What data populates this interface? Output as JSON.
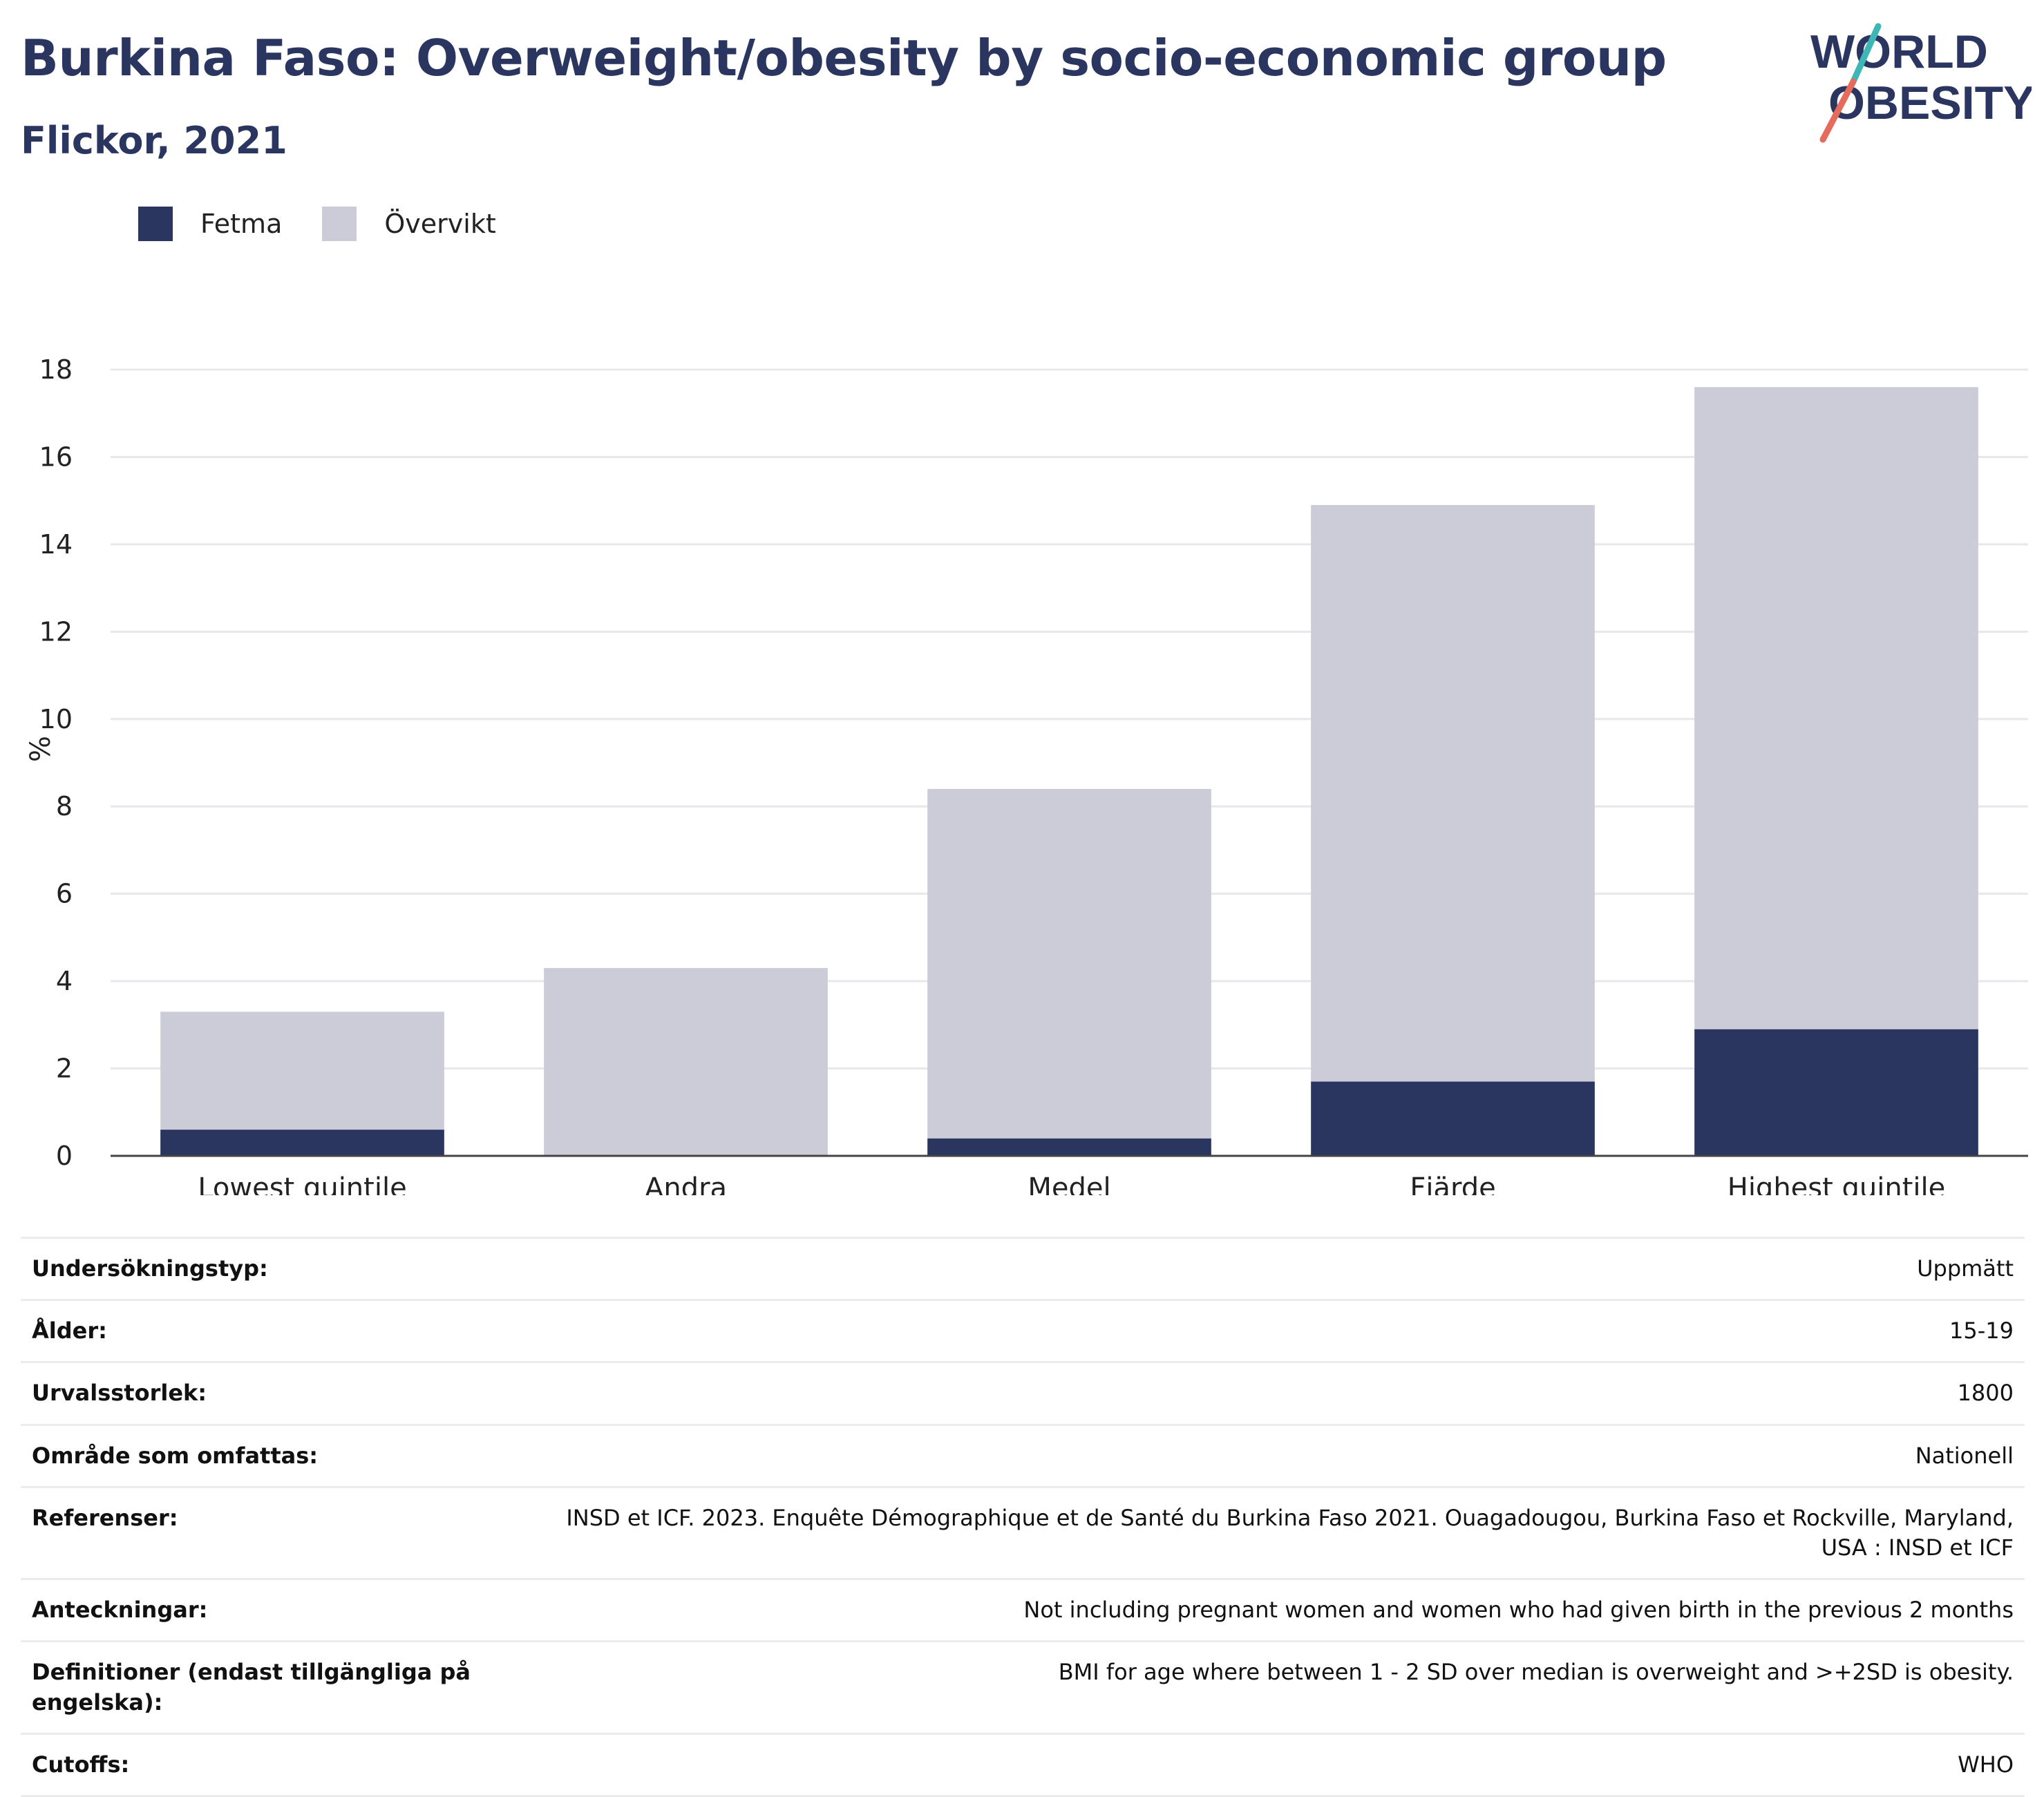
{
  "header": {
    "title": "Burkina Faso: Overweight/obesity by socio-economic group",
    "subtitle": "Flickor, 2021"
  },
  "logo": {
    "line1": "WORLD",
    "line2": "OBESITY"
  },
  "legend": [
    {
      "label": "Fetma",
      "color": "#2a3560"
    },
    {
      "label": "Övervikt",
      "color": "#cbccd8"
    }
  ],
  "chart_data": {
    "type": "bar",
    "stacked": true,
    "categories": [
      "Lowest quintile",
      "Andra",
      "Medel",
      "Fjärde",
      "Highest quintile"
    ],
    "series": [
      {
        "name": "Fetma",
        "color": "#2a3560",
        "values": [
          0.6,
          0.0,
          0.4,
          1.7,
          2.9
        ]
      },
      {
        "name": "Övervikt",
        "color": "#cbccd8",
        "values": [
          2.7,
          4.3,
          8.0,
          13.2,
          14.7
        ]
      }
    ],
    "ylabel": "%",
    "ylim": [
      0,
      18
    ],
    "yticks": [
      0,
      2,
      4,
      6,
      8,
      10,
      12,
      14,
      16,
      18
    ],
    "grid": true
  },
  "info_rows": [
    {
      "label": "Undersökningstyp:",
      "value": "Uppmätt"
    },
    {
      "label": "Ålder:",
      "value": "15-19"
    },
    {
      "label": "Urvalsstorlek:",
      "value": "1800"
    },
    {
      "label": "Område som omfattas:",
      "value": "Nationell"
    },
    {
      "label": "Referenser:",
      "value": "INSD et ICF. 2023. Enquête Démographique et de Santé du Burkina Faso 2021. Ouagadougou, Burkina Faso et Rockville, Maryland, USA : INSD et ICF"
    },
    {
      "label": "Anteckningar:",
      "value": "Not including pregnant women and women who had given birth in the previous 2 months"
    },
    {
      "label": "Definitioner (endast tillgängliga på engelska):",
      "value": "BMI for age where between 1 - 2 SD over median is overweight and >+2SD is obesity."
    },
    {
      "label": "Cutoffs:",
      "value": "WHO"
    }
  ]
}
